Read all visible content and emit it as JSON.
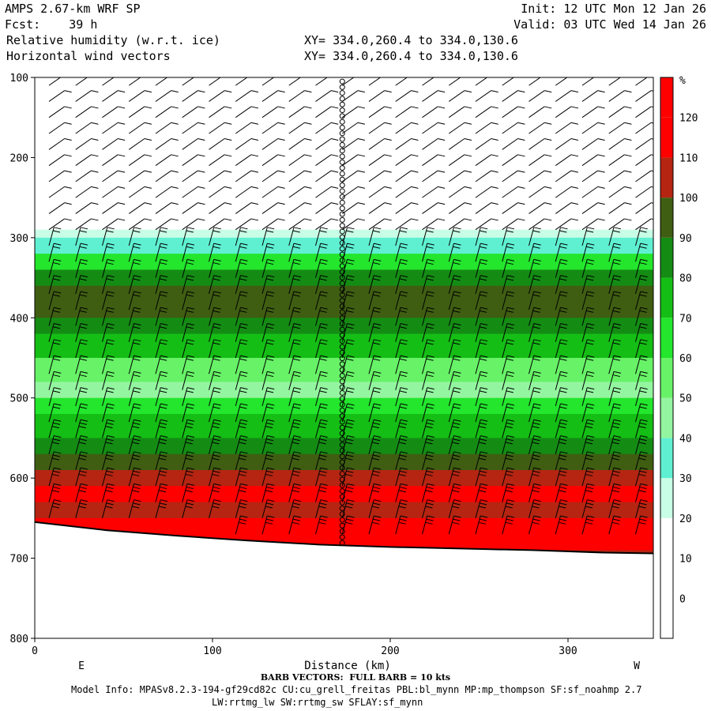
{
  "header": {
    "model": "AMPS 2.67-km WRF SP",
    "fcst_label": "Fcst:",
    "fcst_value": "39 h",
    "field1": "Relative humidity (w.r.t. ice)",
    "field2": "Horizontal wind vectors",
    "init": "Init: 12 UTC Mon 12 Jan 26",
    "valid": "Valid: 03 UTC Wed 14 Jan 26",
    "xy1": "XY= 334.0,260.4 to 334.0,130.6",
    "xy2": "XY= 334.0,260.4 to 334.0,130.6"
  },
  "footer": {
    "barb_note": "BARB VECTORS:  FULL BARB = 10 kts",
    "model_info_1": "Model Info: MPASv8.2.3-194-gf29cd82c CU:cu_grell_freitas PBL:bl_mynn MP:mp_thompson SF:sf_noahmp 2.7",
    "model_info_2": "LW:rrtmg_lw SW:rrtmg_sw SFLAY:sf_mynn"
  },
  "chart_data": {
    "type": "heatmap",
    "title": "Relative humidity (w.r.t. ice)",
    "xlabel": "Distance (km)",
    "ylabel": "",
    "x_ticks": [
      0,
      100,
      200,
      300
    ],
    "y_ticks": [
      100,
      200,
      300,
      400,
      500,
      600,
      700,
      800
    ],
    "xlim": [
      0,
      348
    ],
    "ylim": [
      800,
      100
    ],
    "x_end_labels": [
      "E",
      "W"
    ],
    "colorbar": {
      "unit": "%",
      "levels": [
        0,
        10,
        20,
        30,
        40,
        50,
        60,
        70,
        80,
        90,
        100,
        110,
        120
      ],
      "colors": [
        "#ffffff",
        "#ffffff",
        "#ffffff",
        "#c8fde6",
        "#5ff0d2",
        "#94f5a0",
        "#67f267",
        "#23e62d",
        "#15be15",
        "#148c14",
        "#3f5e12",
        "#b52512",
        "#ff0000"
      ]
    },
    "rh_profile": {
      "pressure_hpa": [
        290,
        300,
        320,
        340,
        360,
        380,
        400,
        420,
        450,
        480,
        500,
        520,
        550,
        570,
        590,
        610,
        630,
        650,
        670,
        690
      ],
      "rh_percent": [
        30,
        45,
        70,
        90,
        100,
        100,
        90,
        80,
        65,
        55,
        70,
        85,
        90,
        100,
        110,
        120,
        110,
        120,
        120,
        110
      ]
    },
    "terrain_pressure_hpa": [
      655,
      665,
      672,
      678,
      683,
      686,
      688,
      690,
      693,
      694
    ],
    "terrain_x_km": [
      0,
      40,
      80,
      120,
      160,
      200,
      240,
      280,
      320,
      348
    ],
    "marker_column_x_km": 173
  }
}
